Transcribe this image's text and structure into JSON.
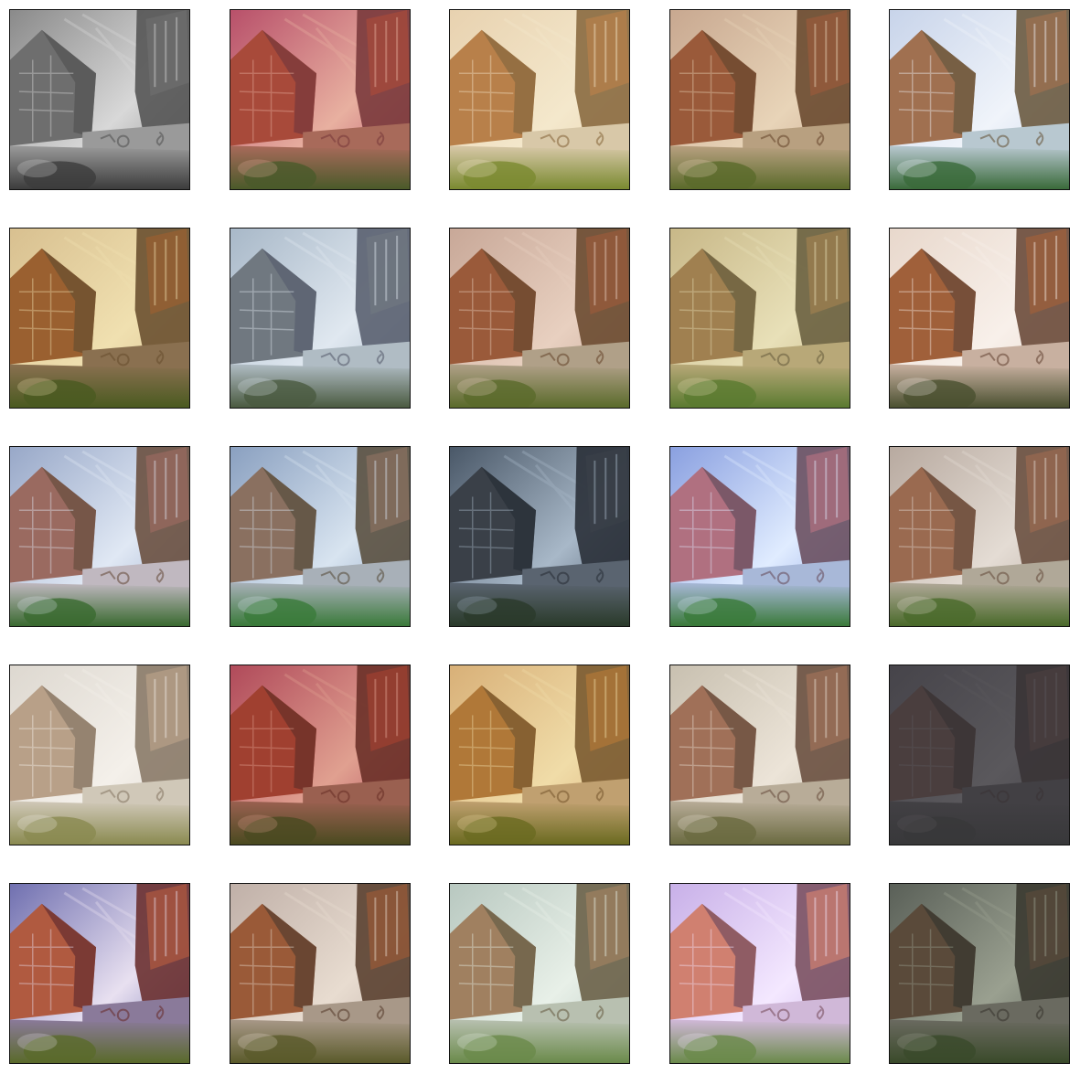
{
  "figure": {
    "rows": 5,
    "cols": 5,
    "panel_palettes": [
      {
        "sky": "#8a8a8a",
        "wall": "#555555",
        "bldg": "#6e6e6e",
        "grass": "#3c3c3c",
        "ground": "#9a9a9a",
        "accent": "#d8d8d8"
      },
      {
        "sky": "#b8506a",
        "wall": "#7a3a3c",
        "bldg": "#a84a3a",
        "grass": "#4a5a2a",
        "ground": "#a86a5a",
        "accent": "#e8b0a0"
      },
      {
        "sky": "#e8d2b0",
        "wall": "#8a6a40",
        "bldg": "#b8804a",
        "grass": "#7a8a30",
        "ground": "#d8c8a8",
        "accent": "#f4e8cc"
      },
      {
        "sky": "#c8a890",
        "wall": "#6a4a30",
        "bldg": "#9a5a3a",
        "grass": "#5a6a2a",
        "ground": "#b8a080",
        "accent": "#e8d4b8"
      },
      {
        "sky": "#c8d4ea",
        "wall": "#6a5a40",
        "bldg": "#a07050",
        "grass": "#3a6a3a",
        "ground": "#b8c8d0",
        "accent": "#f0f4fa"
      },
      {
        "sky": "#d8c090",
        "wall": "#6a5030",
        "bldg": "#9a6030",
        "grass": "#4a5a20",
        "ground": "#8a7050",
        "accent": "#f0e0b0"
      },
      {
        "sky": "#a8b8c8",
        "wall": "#5a6070",
        "bldg": "#707880",
        "grass": "#4a5a40",
        "ground": "#b0bcc4",
        "accent": "#e0e8f0"
      },
      {
        "sky": "#c8a898",
        "wall": "#6a4a30",
        "bldg": "#9a5a3a",
        "grass": "#5a6a2a",
        "ground": "#b0a088",
        "accent": "#e8d0c0"
      },
      {
        "sky": "#c8b888",
        "wall": "#6a6040",
        "bldg": "#a08050",
        "grass": "#5a7a30",
        "ground": "#b8a878",
        "accent": "#e8e0b8"
      },
      {
        "sky": "#e8d8cc",
        "wall": "#6a4a3a",
        "bldg": "#a0603a",
        "grass": "#4a5030",
        "ground": "#c8b0a0",
        "accent": "#f8f0ea"
      },
      {
        "sky": "#98a8c8",
        "wall": "#6a5040",
        "bldg": "#9a6a60",
        "grass": "#3a6a30",
        "ground": "#c0b8c0",
        "accent": "#e0e8f4"
      },
      {
        "sky": "#8aa0c0",
        "wall": "#5a5040",
        "bldg": "#8a7060",
        "grass": "#3a7a3a",
        "ground": "#a8b0b8",
        "accent": "#d8e4f0"
      },
      {
        "sky": "#4a5868",
        "wall": "#2a3038",
        "bldg": "#3a4048",
        "grass": "#2a3a2a",
        "ground": "#5a6470",
        "accent": "#a8b8c8"
      },
      {
        "sky": "#8aa0e0",
        "wall": "#6a5060",
        "bldg": "#b07080",
        "grass": "#3a7a3a",
        "ground": "#a8b8d8",
        "accent": "#e0ecff"
      },
      {
        "sky": "#b8aaa0",
        "wall": "#6a5040",
        "bldg": "#9a6a50",
        "grass": "#4a6a2a",
        "ground": "#b0a898",
        "accent": "#e4dcd4"
      },
      {
        "sky": "#ddd8d0",
        "wall": "#8a7a68",
        "bldg": "#b8a088",
        "grass": "#8a8a50",
        "ground": "#d0c8b8",
        "accent": "#f4f0ea"
      },
      {
        "sky": "#b04a5a",
        "wall": "#6a3028",
        "bldg": "#a04030",
        "grass": "#4a4a20",
        "ground": "#9a6050",
        "accent": "#e0a090"
      },
      {
        "sky": "#d8b078",
        "wall": "#7a5a30",
        "bldg": "#b07838",
        "grass": "#6a6a20",
        "ground": "#c0a070",
        "accent": "#f0dca8"
      },
      {
        "sky": "#c8c0b0",
        "wall": "#6a5040",
        "bldg": "#a07058",
        "grass": "#6a6a40",
        "ground": "#b8ac98",
        "accent": "#ece4d8"
      },
      {
        "sky": "#46444a",
        "wall": "#3a3436",
        "bldg": "#4a3e3e",
        "grass": "#38383a",
        "ground": "#424044",
        "accent": "#5a585c"
      },
      {
        "sky": "#7070b0",
        "wall": "#6a3030",
        "bldg": "#b05a40",
        "grass": "#5a6a2a",
        "ground": "#8a7a9a",
        "accent": "#e8e0f0"
      },
      {
        "sky": "#c0b0a8",
        "wall": "#5a4030",
        "bldg": "#9a5a38",
        "grass": "#5a5a2a",
        "ground": "#a89888",
        "accent": "#e8dcd0"
      },
      {
        "sky": "#b8c8c0",
        "wall": "#6a6048",
        "bldg": "#a08060",
        "grass": "#6a8a4a",
        "ground": "#b8c0b0",
        "accent": "#e8f0e8"
      },
      {
        "sky": "#c8b0e8",
        "wall": "#7a5060",
        "bldg": "#d08070",
        "grass": "#6a8a4a",
        "ground": "#d0b8d8",
        "accent": "#f4e8ff"
      },
      {
        "sky": "#5a6058",
        "wall": "#3a3830",
        "bldg": "#5a4a3a",
        "grass": "#3a4a2a",
        "ground": "#6a6a60",
        "accent": "#9aa090"
      }
    ]
  }
}
